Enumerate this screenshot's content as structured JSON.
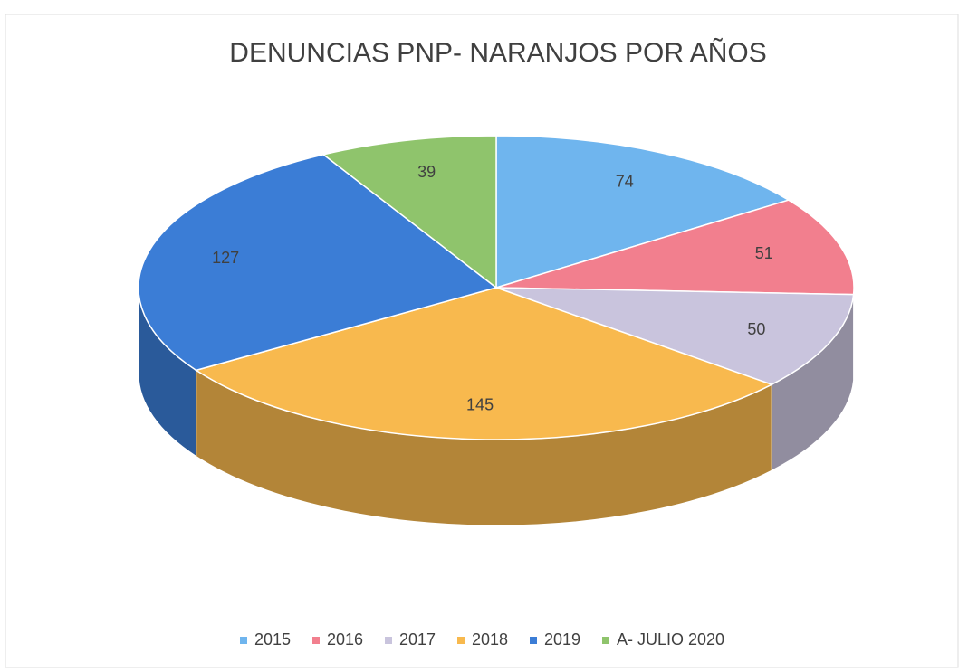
{
  "chart_data": {
    "type": "pie",
    "title": "DENUNCIAS PNP- NARANJOS POR AÑOS",
    "categories": [
      "2015",
      "2016",
      "2017",
      "2018",
      "2019",
      "A- JULIO 2020"
    ],
    "values": [
      74,
      51,
      50,
      145,
      127,
      39
    ],
    "colors": [
      "#6fb5ee",
      "#f27f8e",
      "#c9c4dd",
      "#f8b94e",
      "#3b7dd6",
      "#8fc46c"
    ],
    "legend": "bottom"
  }
}
